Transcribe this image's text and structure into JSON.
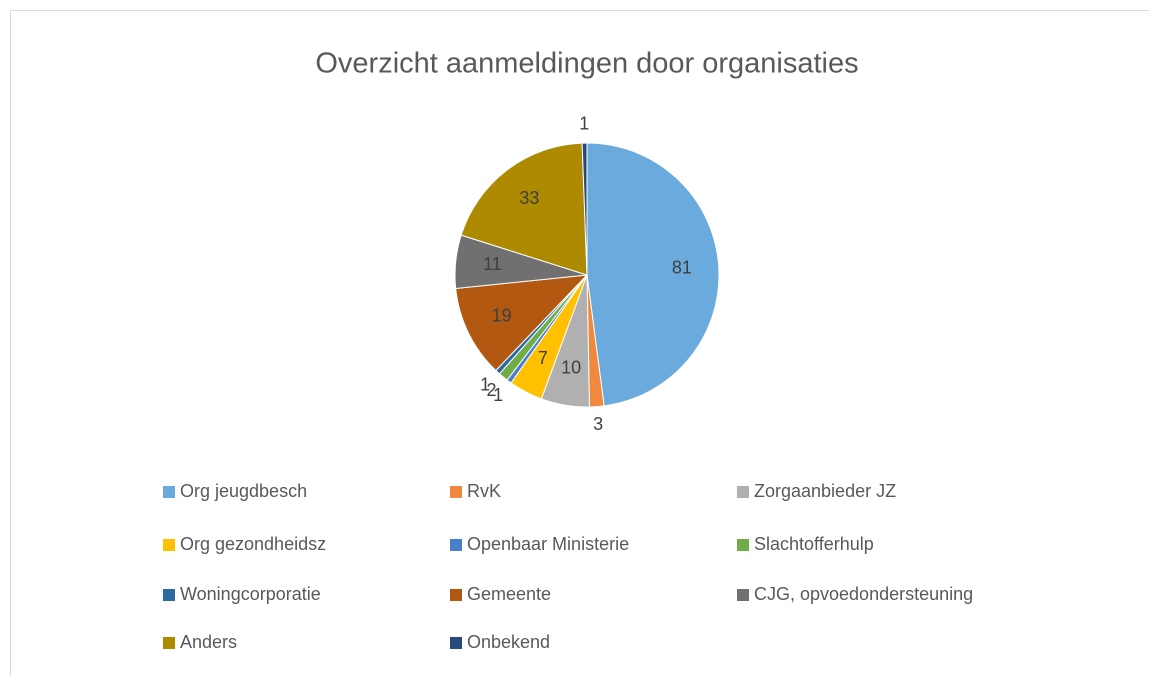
{
  "chart_data": {
    "type": "pie",
    "title": "Overzicht aanmeldingen door organisaties",
    "categories": [
      "Org jeugdbesch",
      "RvK",
      "Zorgaanbieder JZ",
      "Org gezondheidsz",
      "Openbaar Ministerie",
      "Slachtofferhulp",
      "Woningcorporatie",
      "Gemeente",
      "CJG, opvoedondersteuning",
      "Anders",
      "Onbekend"
    ],
    "values": [
      81,
      3,
      10,
      7,
      1,
      2,
      1,
      19,
      11,
      33,
      1
    ],
    "colors": [
      "#6aaadc",
      "#f0883e",
      "#b0b0b0",
      "#ffc000",
      "#4a7fcc",
      "#70ad47",
      "#2a6aa0",
      "#b25810",
      "#707070",
      "#ad8a00",
      "#264a7a"
    ],
    "legend": "bottom"
  }
}
